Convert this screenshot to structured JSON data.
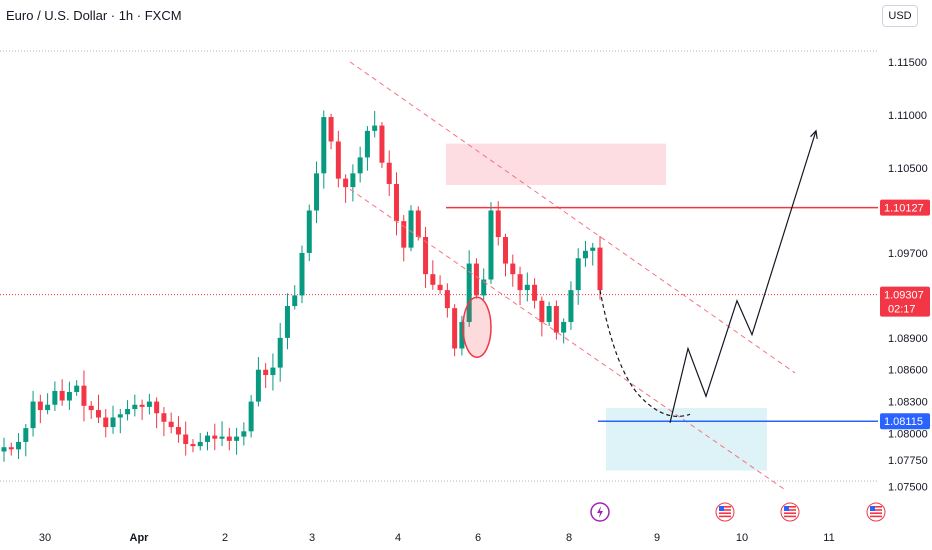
{
  "header": {
    "title": "Euro / U.S. Dollar · 1h · FXCM",
    "currency": "USD"
  },
  "colors": {
    "bull": "#089981",
    "bear": "#f23645",
    "resistance_line": "#f23645",
    "support_line": "#2962ff",
    "supply_zone": "#fcd5d9",
    "demand_zone": "#d9f2f6",
    "channel": "#f7727f",
    "current_price_badge": "#f23645",
    "support_badge": "#2962ff",
    "text": "#131722"
  },
  "chart_data": {
    "type": "candlestick",
    "symbol": "EURUSD",
    "timeframe": "1h",
    "source": "FXCM",
    "ylim": [
      1.0742,
      1.1164
    ],
    "y_ticks": [
      "1.11500",
      "1.11000",
      "1.10500",
      "1.09700",
      "1.08900",
      "1.08600",
      "1.08300",
      "1.08000",
      "1.07750",
      "1.07500"
    ],
    "x_ticks": [
      {
        "label": "30",
        "bold": false
      },
      {
        "label": "Apr",
        "bold": true
      },
      {
        "label": "2",
        "bold": false
      },
      {
        "label": "3",
        "bold": false
      },
      {
        "label": "4",
        "bold": false
      },
      {
        "label": "6",
        "bold": false
      },
      {
        "label": "8",
        "bold": false
      },
      {
        "label": "9",
        "bold": false
      },
      {
        "label": "10",
        "bold": false
      },
      {
        "label": "11",
        "bold": false
      }
    ],
    "candles_close_path": [
      1.0787,
      1.0785,
      1.0792,
      1.0805,
      1.083,
      1.0822,
      1.0827,
      1.084,
      1.0831,
      1.0839,
      1.0845,
      1.0826,
      1.0822,
      1.0815,
      1.0806,
      1.0815,
      1.0818,
      1.0823,
      1.0827,
      1.0825,
      1.083,
      1.0819,
      1.0811,
      1.0806,
      1.0799,
      1.079,
      1.0788,
      1.0792,
      1.0798,
      1.0795,
      1.0797,
      1.0793,
      1.0797,
      1.0802,
      1.083,
      1.086,
      1.0855,
      1.0862,
      1.089,
      1.092,
      1.093,
      1.097,
      1.101,
      1.1045,
      1.1098,
      1.1075,
      1.104,
      1.1032,
      1.1045,
      1.106,
      1.1085,
      1.109,
      1.1055,
      1.1035,
      1.1,
      1.0975,
      1.101,
      1.0985,
      1.095,
      1.094,
      1.0935,
      1.0918,
      1.088,
      1.0905,
      1.096,
      1.093,
      1.0945,
      1.101,
      1.0985,
      1.096,
      1.095,
      1.0935,
      1.094,
      1.0925,
      1.0905,
      1.092,
      1.0895,
      1.0905,
      1.0935,
      1.0965,
      1.0972,
      1.0975,
      1.0935
    ],
    "current_price": "1.09307",
    "countdown": "02:17",
    "resistance_level": "1.10127",
    "support_level": "1.08115",
    "supply_zone": [
      1.1034,
      1.1073
    ],
    "demand_zone": [
      1.0765,
      1.0824
    ],
    "channel_upper": {
      "from": [
        "Apr 3 12:00",
        1.115
      ],
      "to": [
        "Apr 10 16:00",
        1.0857
      ]
    },
    "channel_lower": {
      "from": [
        "Apr 3 12:00",
        1.103
      ],
      "to": [
        "Apr 10 12:00",
        1.0747
      ]
    },
    "projection_path": [
      1.0935,
      1.087,
      1.083,
      1.0815,
      1.081,
      1.088,
      1.0835,
      1.0925,
      1.0895,
      1.101,
      1.1085
    ],
    "event_icons": [
      "lightning-event",
      "us-flag-event",
      "us-flag-event",
      "us-flag-event"
    ]
  }
}
